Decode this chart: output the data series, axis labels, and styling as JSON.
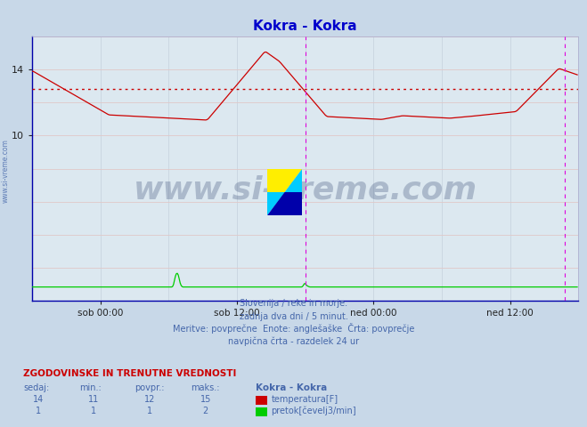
{
  "title": "Kokra - Kokra",
  "title_color": "#0000cc",
  "fig_bg_color": "#c8d8e8",
  "plot_bg_color": "#dce8f0",
  "xlim": [
    0,
    576
  ],
  "ylim": [
    0,
    16
  ],
  "yticks": [
    10,
    14
  ],
  "grid_color_v": "#c8d4e0",
  "grid_color_h": "#e0c8c8",
  "avg_line_color": "#cc0000",
  "avg_line_value": 12.8,
  "vline_color": "#dd00dd",
  "vline_positions": [
    288,
    562
  ],
  "xtick_labels": [
    "sob 00:00",
    "sob 12:00",
    "ned 00:00",
    "ned 12:00"
  ],
  "xtick_positions": [
    72,
    216,
    360,
    504
  ],
  "watermark_text": "www.si-vreme.com",
  "watermark_color": "#1a3060",
  "watermark_alpha": 0.25,
  "subtitle_lines": [
    "Slovenija / reke in morje.",
    "zadnja dva dni / 5 minut.",
    "Meritve: povprečne  Enote: anglešaške  Črta: povprečje",
    "navpična črta - razdelek 24 ur"
  ],
  "subtitle_color": "#4466aa",
  "table_header": "ZGODOVINSKE IN TRENUTNE VREDNOSTI",
  "table_cols": [
    "sedaj:",
    "min.:",
    "povpr.:",
    "maks.:"
  ],
  "table_row1": [
    14,
    11,
    12,
    15
  ],
  "table_row2": [
    1,
    1,
    1,
    2
  ],
  "legend_label1": "temperatura[F]",
  "legend_label2": "pretok[čevelj3/min]",
  "legend_color1": "#cc0000",
  "legend_color2": "#00cc00",
  "station_label": "Kokra - Kokra",
  "left_margin_text": "www.si-vreme.com"
}
